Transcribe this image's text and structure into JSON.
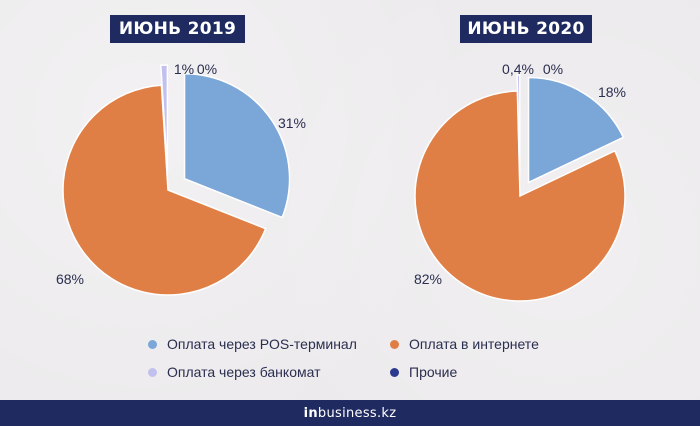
{
  "chart_data": [
    {
      "type": "pie",
      "title": "ИЮНЬ 2019",
      "slices": [
        {
          "name": "Оплата через POS-терминал",
          "value": 31,
          "label": "31%",
          "color": "#7aa6d8",
          "exploded": true
        },
        {
          "name": "Оплата в интернете",
          "value": 68,
          "label": "68%",
          "color": "#e07f45",
          "exploded": false
        },
        {
          "name": "Оплата через банкомат",
          "value": 1,
          "label": "1%",
          "color": "#c2c0ee",
          "exploded": true
        },
        {
          "name": "Прочие",
          "value": 0,
          "label": "0%",
          "color": "#2b3a8c",
          "exploded": true
        }
      ]
    },
    {
      "type": "pie",
      "title": "ИЮНЬ 2020",
      "slices": [
        {
          "name": "Оплата через POS-терминал",
          "value": 18,
          "label": "18%",
          "color": "#7aa6d8",
          "exploded": true
        },
        {
          "name": "Оплата в интернете",
          "value": 82,
          "label": "82%",
          "color": "#e07f45",
          "exploded": false
        },
        {
          "name": "Оплата через банкомат",
          "value": 0.4,
          "label": "0,4%",
          "color": "#c2c0ee",
          "exploded": true
        },
        {
          "name": "Прочие",
          "value": 0,
          "label": "0%",
          "color": "#2b3a8c",
          "exploded": true
        }
      ]
    }
  ],
  "legend": [
    {
      "label": "Оплата через POS-терминал",
      "color": "#7aa6d8"
    },
    {
      "label": "Оплата в интернете",
      "color": "#e07f45"
    },
    {
      "label": "Оплата через банкомат",
      "color": "#c2c0ee"
    },
    {
      "label": "Прочие",
      "color": "#2b3a8c"
    }
  ],
  "footer": {
    "brand_prefix": "in",
    "brand_suffix": "business.kz"
  }
}
